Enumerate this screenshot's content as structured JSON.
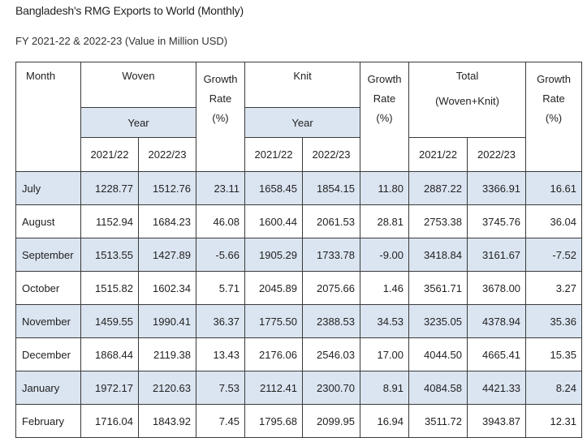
{
  "title": "Bangladesh's RMG Exports to World (Monthly)",
  "subtitle": "FY 2021-22 & 2022-23 (Value in Million USD)",
  "headers": {
    "month": "Month",
    "woven": "Woven",
    "knit": "Knit",
    "total": "Total",
    "growth_line1": "Growth",
    "growth_line2": "Rate",
    "growth_line3": "(%)",
    "year": "Year",
    "total_sub": "(Woven+Knit)",
    "y1": "2021/22",
    "y2": "2022/23"
  },
  "rows": [
    [
      "July",
      "1228.77",
      "1512.76",
      "23.11",
      "1658.45",
      "1854.15",
      "11.80",
      "2887.22",
      "3366.91",
      "16.61"
    ],
    [
      "August",
      "1152.94",
      "1684.23",
      "46.08",
      "1600.44",
      "2061.53",
      "28.81",
      "2753.38",
      "3745.76",
      "36.04"
    ],
    [
      "September",
      "1513.55",
      "1427.89",
      "-5.66",
      "1905.29",
      "1733.78",
      "-9.00",
      "3418.84",
      "3161.67",
      "-7.52"
    ],
    [
      "October",
      "1515.82",
      "1602.34",
      "5.71",
      "2045.89",
      "2075.66",
      "1.46",
      "3561.71",
      "3678.00",
      "3.27"
    ],
    [
      "November",
      "1459.55",
      "1990.41",
      "36.37",
      "1775.50",
      "2388.53",
      "34.53",
      "3235.05",
      "4378.94",
      "35.36"
    ],
    [
      "December",
      "1868.44",
      "2119.38",
      "13.43",
      "2176.06",
      "2546.03",
      "17.00",
      "4044.50",
      "4665.41",
      "15.35"
    ],
    [
      "January",
      "1972.17",
      "2120.63",
      "7.53",
      "2112.41",
      "2300.70",
      "8.91",
      "4084.58",
      "4421.33",
      "8.24"
    ],
    [
      "February",
      "1716.04",
      "1843.92",
      "7.45",
      "1795.68",
      "2099.95",
      "16.94",
      "3511.72",
      "3943.87",
      "12.31"
    ]
  ]
}
